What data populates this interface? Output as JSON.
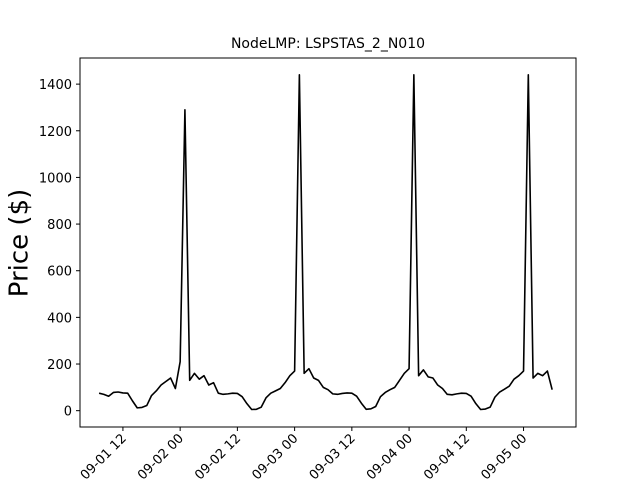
{
  "chart_data": {
    "type": "line",
    "title": "NodeLMP: LSPSTAS_2_N010",
    "ylabel": "Price ($)",
    "x": [
      "09-01 07",
      "09-01 08",
      "09-01 09",
      "09-01 10",
      "09-01 11",
      "09-01 12",
      "09-01 13",
      "09-01 14",
      "09-01 15",
      "09-01 16",
      "09-01 17",
      "09-01 18",
      "09-01 19",
      "09-01 20",
      "09-01 21",
      "09-01 22",
      "09-01 23",
      "09-02 00",
      "09-02 01",
      "09-02 02",
      "09-02 03",
      "09-02 04",
      "09-02 05",
      "09-02 06",
      "09-02 07",
      "09-02 08",
      "09-02 09",
      "09-02 10",
      "09-02 11",
      "09-02 12",
      "09-02 13",
      "09-02 14",
      "09-02 15",
      "09-02 16",
      "09-02 17",
      "09-02 18",
      "09-02 19",
      "09-02 20",
      "09-02 21",
      "09-02 22",
      "09-02 23",
      "09-03 00",
      "09-03 01",
      "09-03 02",
      "09-03 03",
      "09-03 04",
      "09-03 05",
      "09-03 06",
      "09-03 07",
      "09-03 08",
      "09-03 09",
      "09-03 10",
      "09-03 11",
      "09-03 12",
      "09-03 13",
      "09-03 14",
      "09-03 15",
      "09-03 16",
      "09-03 17",
      "09-03 18",
      "09-03 19",
      "09-03 20",
      "09-03 21",
      "09-03 22",
      "09-03 23",
      "09-04 00",
      "09-04 01",
      "09-04 02",
      "09-04 03",
      "09-04 04",
      "09-04 05",
      "09-04 06",
      "09-04 07",
      "09-04 08",
      "09-04 09",
      "09-04 10",
      "09-04 11",
      "09-04 12",
      "09-04 13",
      "09-04 14",
      "09-04 15",
      "09-04 16",
      "09-04 17",
      "09-04 18",
      "09-04 19",
      "09-04 20",
      "09-04 21",
      "09-04 22",
      "09-04 23",
      "09-05 00",
      "09-05 01",
      "09-05 02",
      "09-05 03",
      "09-05 04",
      "09-05 05",
      "09-05 06"
    ],
    "values": [
      75,
      70,
      62,
      78,
      80,
      76,
      75,
      42,
      12,
      14,
      22,
      65,
      85,
      110,
      125,
      140,
      95,
      210,
      1290,
      130,
      160,
      135,
      150,
      110,
      120,
      75,
      70,
      72,
      75,
      74,
      60,
      30,
      5,
      6,
      15,
      55,
      75,
      85,
      95,
      120,
      150,
      170,
      1440,
      160,
      180,
      140,
      130,
      100,
      90,
      72,
      70,
      74,
      76,
      75,
      62,
      32,
      6,
      8,
      18,
      60,
      78,
      90,
      100,
      130,
      160,
      180,
      1440,
      150,
      175,
      145,
      140,
      110,
      95,
      70,
      68,
      72,
      75,
      74,
      62,
      30,
      5,
      7,
      15,
      58,
      80,
      92,
      105,
      135,
      150,
      170,
      1440,
      140,
      160,
      150,
      170,
      90
    ],
    "color": "#000000",
    "xlim": [
      "09-01 03",
      "09-05 11"
    ],
    "xticks": [
      "09-01 12",
      "09-02 00",
      "09-02 12",
      "09-03 00",
      "09-03 12",
      "09-04 00",
      "09-04 12",
      "09-05 00"
    ],
    "ylim": [
      -70,
      1512
    ],
    "yticks": [
      0,
      200,
      400,
      600,
      800,
      1000,
      1200,
      1400
    ]
  }
}
